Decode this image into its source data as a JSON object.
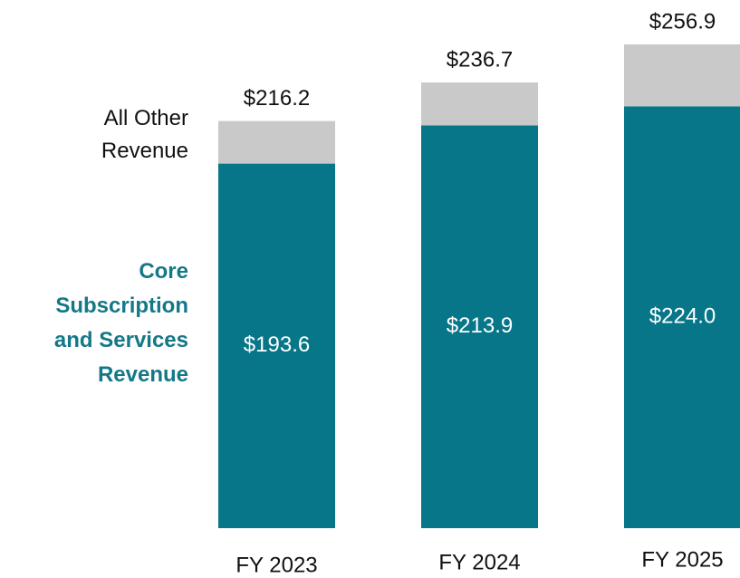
{
  "chart_data": {
    "type": "stacked_bar",
    "categories": [
      "FY 2023",
      "FY 2024",
      "FY 2025"
    ],
    "series": [
      {
        "name": "Core Subscription and Services Revenue",
        "color": "#077688",
        "values": [
          193.6,
          213.9,
          224.0
        ],
        "value_labels": [
          "$193.6",
          "$213.9",
          "$224.0"
        ]
      },
      {
        "name": "All Other Revenue",
        "color": "#c9c9c9",
        "values": [
          22.6,
          22.8,
          32.9
        ]
      }
    ],
    "totals": [
      216.2,
      236.7,
      256.9
    ],
    "total_labels": [
      "$216.2",
      "$236.7",
      "$256.9"
    ],
    "ylim": [
      0,
      280
    ]
  }
}
